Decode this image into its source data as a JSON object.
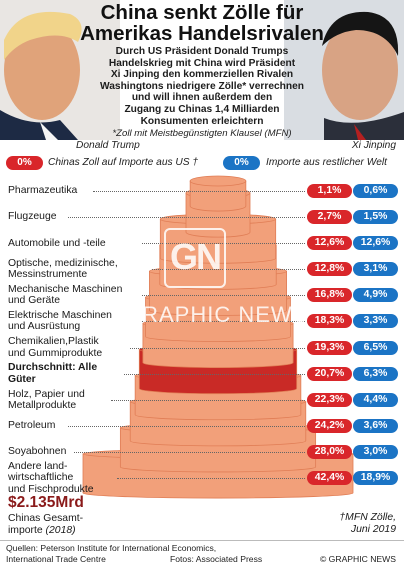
{
  "title_lines": [
    "China senkt Zölle für",
    "Amerikas Handelsrivalen"
  ],
  "subtitle_lines": [
    "Durch US Präsident Donald Trumps",
    "Handelskrieg mit China wird Präsident",
    "Xi Jinping den kommerziellen Rivalen",
    "Washingtons niedrigere Zölle* verrechnen",
    "und will ihnen außerdem den",
    "Zugang zu Chinas 1,4 Milliarden",
    "Konsumenten erleichtern"
  ],
  "footnote": "*Zoll mit Meistbegünstigten Klausel (MFN)",
  "photo_captions": {
    "left": "Donald Trump",
    "right": "Xi Jinping"
  },
  "legend": [
    {
      "pill": "0%",
      "label": "Chinas Zoll auf Importe aus US †",
      "color": "#d9262a"
    },
    {
      "pill": "0%",
      "label": "Importe aus restlicher Welt",
      "color": "#1b74c5"
    }
  ],
  "watermark": {
    "logo": "GN",
    "text": "GRAPHIC NEWS"
  },
  "chart_data": {
    "type": "bar",
    "categories": [
      "Pharmazeutika",
      "Flugzeuge",
      "Automobile und -teile",
      "Optische, medizinische, Messinstrumente",
      "Mechanische Maschinen und Geräte",
      "Elektrische Maschinen und Ausrüstung",
      "Chemikalien, Plastik und Gummiprodukte",
      "Durchschnitt: Alle Güter",
      "Holz, Papier und Metallprodukte",
      "Petroleum",
      "Soyabohnen",
      "Andere landwirtschaftliche und Fischprodukte"
    ],
    "category_display": [
      [
        "Pharmazeutika"
      ],
      [
        "Flugzeuge"
      ],
      [
        "Automobile und -teile"
      ],
      [
        "Optische, medizinische,",
        "Messinstrumente"
      ],
      [
        "Mechanische Maschinen",
        "und Geräte"
      ],
      [
        "Elektrische Maschinen",
        "und Ausrüstung"
      ],
      [
        "Chemikalien,Plastik",
        "und Gummiprodukte"
      ],
      [
        "Durchschnitt: Alle",
        "Güter"
      ],
      [
        "Holz, Papier und",
        "Metallprodukte"
      ],
      [
        "Petroleum"
      ],
      [
        "Soyabohnen"
      ],
      [
        "Andere land-",
        "wirtschaftliche",
        "und Fischprodukte"
      ]
    ],
    "series": [
      {
        "name": "Chinas Zoll auf Importe aus US †",
        "values": [
          1.1,
          2.7,
          12.6,
          12.8,
          16.8,
          18.3,
          19.3,
          20.7,
          22.3,
          24.2,
          28.0,
          42.4
        ],
        "labels": [
          "1,1%",
          "2,7%",
          "12,6%",
          "12,8%",
          "16,8%",
          "18,3%",
          "19,3%",
          "20,7%",
          "22,3%",
          "24,2%",
          "28,0%",
          "42,4%"
        ]
      },
      {
        "name": "Importe aus restlicher Welt",
        "values": [
          0.6,
          1.5,
          12.6,
          3.1,
          4.9,
          3.3,
          6.5,
          6.3,
          4.4,
          3.6,
          3.0,
          18.9
        ],
        "labels": [
          "0,6%",
          "1,5%",
          "12,6%",
          "3,1%",
          "4,9%",
          "3,3%",
          "6,5%",
          "6,3%",
          "4,4%",
          "3,6%",
          "3,0%",
          "18,9%"
        ]
      }
    ],
    "highlight_category": "Durchschnitt: Alle Güter",
    "colors": {
      "us": "#d9262a",
      "mfn": "#1b74c5",
      "tier": "#f2a07a",
      "tier_edge": "#e07d55",
      "highlight": "#c92a26"
    }
  },
  "total": {
    "value": "$2.135Mrd",
    "label": "Chinas Gesamt-",
    "label2": "importe",
    "year": "(2018)"
  },
  "mfn_note": [
    "†MFN Zölle,",
    "Juni 2019"
  ],
  "sources": [
    "Quellen:  Peterson Institute for International Economics,",
    "International Trade Centre"
  ],
  "photo_credit": "Fotos: Associated Press",
  "brand": "© GRAPHIC NEWS"
}
